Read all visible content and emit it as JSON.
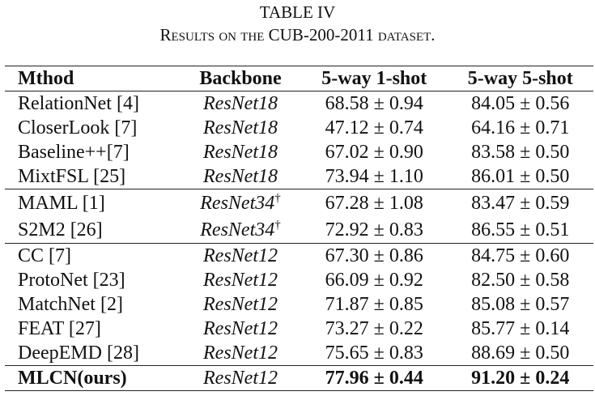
{
  "title": "TABLE IV",
  "caption": "Results on the CUB-200-2011 dataset.",
  "table": {
    "header": [
      "Mthod",
      "Backbone",
      "5-way 1-shot",
      "5-way 5-shot"
    ],
    "groups": [
      [
        {
          "cells": [
            "RelationNet [4]",
            "ResNet18",
            "68.58 ± 0.94",
            "84.05 ± 0.56"
          ]
        },
        {
          "cells": [
            "CloserLook [7]",
            "ResNet18",
            "47.12 ± 0.74",
            "64.16 ± 0.71"
          ]
        },
        {
          "cells": [
            "Baseline++[7]",
            "ResNet18",
            "67.02 ± 0.90",
            "83.58 ± 0.50"
          ]
        },
        {
          "cells": [
            "MixtFSL [25]",
            "ResNet18",
            "73.94 ± 1.10",
            "86.01 ± 0.50"
          ]
        }
      ],
      [
        {
          "cells": [
            "MAML [1]",
            "ResNet34",
            "67.28 ± 1.08",
            "83.47 ± 0.59"
          ],
          "note": "†"
        },
        {
          "cells": [
            "S2M2 [26]",
            "ResNet34",
            "72.92 ± 0.83",
            "86.55 ± 0.51"
          ],
          "note": "†"
        }
      ],
      [
        {
          "cells": [
            "CC [7]",
            "ResNet12",
            "67.30 ± 0.86",
            "84.75 ± 0.60"
          ]
        },
        {
          "cells": [
            "ProtoNet [23]",
            "ResNet12",
            "66.09 ± 0.92",
            "82.50 ± 0.58"
          ]
        },
        {
          "cells": [
            "MatchNet [2]",
            "ResNet12",
            "71.87 ± 0.85",
            "85.08 ± 0.57"
          ]
        },
        {
          "cells": [
            "FEAT [27]",
            "ResNet12",
            "73.27 ± 0.22",
            "85.77 ± 0.14"
          ]
        },
        {
          "cells": [
            "DeepEMD [28]",
            "ResNet12",
            "75.65 ± 0.83",
            "88.69 ± 0.50"
          ]
        }
      ],
      [
        {
          "cells": [
            "MLCN(ours)",
            "ResNet12",
            "77.96 ± 0.44",
            "91.20 ± 0.24"
          ]
        }
      ]
    ]
  }
}
